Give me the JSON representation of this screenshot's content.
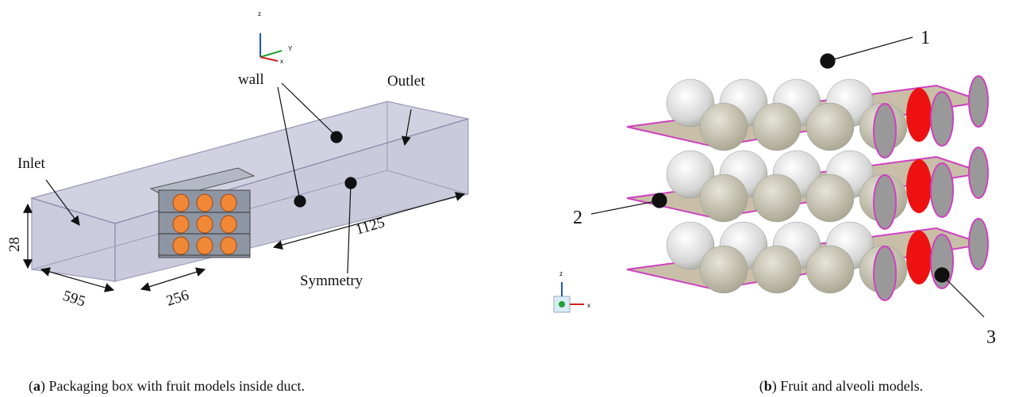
{
  "panel_a": {
    "axes": {
      "z": "z",
      "y": "Y",
      "x": "x"
    },
    "labels": {
      "wall": "wall",
      "outlet": "Outlet",
      "inlet": "Inlet",
      "symmetry": "Symmetry"
    },
    "dimensions": {
      "height": 28,
      "width": 595,
      "box": 256,
      "length": 1125
    },
    "caption": {
      "prefix": "(",
      "label": "a",
      "text": ") Packaging box with fruit models inside duct."
    }
  },
  "panel_b": {
    "axes": {
      "z": "z",
      "x": "x"
    },
    "callouts": [
      "1",
      "2",
      "3"
    ],
    "caption": {
      "prefix": "(",
      "label": "b",
      "text": ") Fruit and alveoli models."
    }
  }
}
